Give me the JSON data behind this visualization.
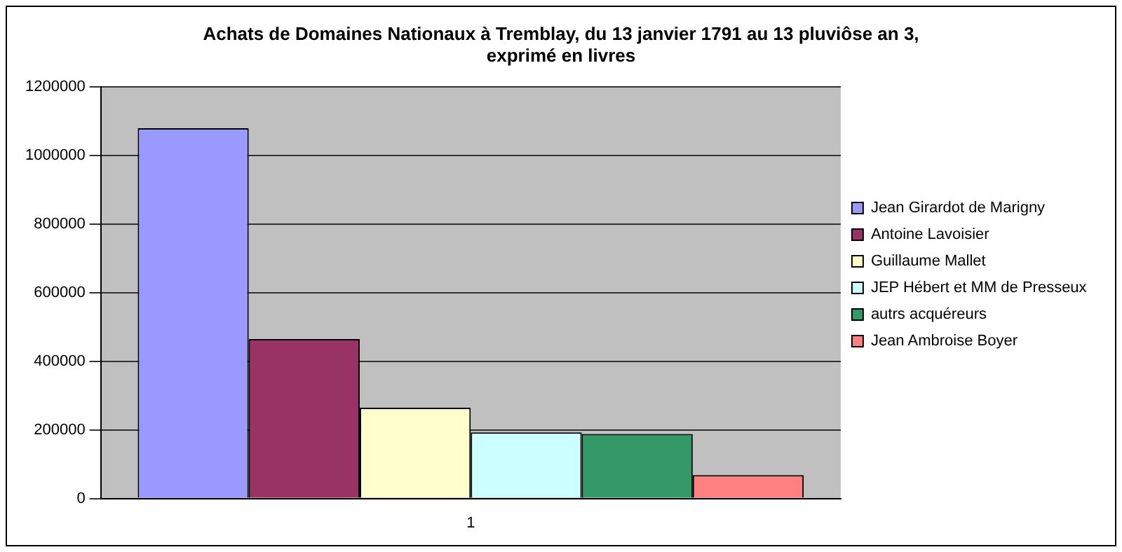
{
  "chart_data": {
    "type": "bar",
    "title": "Achats de Domaines Nationaux à Tremblay, du 13 janvier 1791 au 13 pluviôse an 3,\nexprimé en livres",
    "categories": [
      "1"
    ],
    "series": [
      {
        "name": "Jean Girardot de Marigny",
        "color": "#9999ff",
        "values": [
          1080000
        ]
      },
      {
        "name": "Antoine Lavoisier",
        "color": "#993366",
        "values": [
          465000
        ]
      },
      {
        "name": "Guillaume Mallet",
        "color": "#ffffcc",
        "values": [
          265000
        ]
      },
      {
        "name": "JEP Hébert et MM de Presseux",
        "color": "#ccffff",
        "values": [
          193000
        ]
      },
      {
        "name": "autrs acquéreurs",
        "color": "#339966",
        "values": [
          188000
        ]
      },
      {
        "name": "Jean Ambroise Boyer",
        "color": "#ff8080",
        "values": [
          68000
        ]
      }
    ],
    "ylim": [
      0,
      1200000
    ],
    "yticks": [
      0,
      200000,
      400000,
      600000,
      800000,
      1000000,
      1200000
    ],
    "grid": "y",
    "legend": "right"
  }
}
